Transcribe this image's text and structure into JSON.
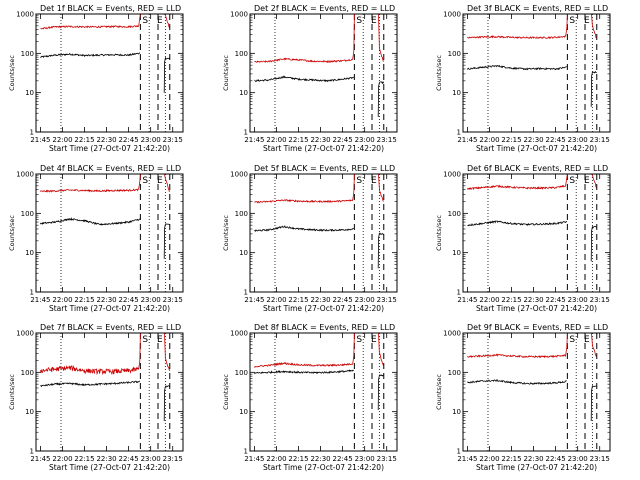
{
  "figure": {
    "common": {
      "ylabel": "Counts/sec",
      "xlabel": "Start Time (27-Oct-07 21:42:20)",
      "x_ticks": [
        "21:45",
        "22:00",
        "22:15",
        "22:30",
        "22:45",
        "23:00",
        "23:15"
      ],
      "y_ticks": [
        "1",
        "10",
        "100",
        "1000"
      ],
      "marker_labels": [
        "S",
        "E"
      ],
      "colors": {
        "events": "#000000",
        "lld": "#cc0000"
      }
    },
    "panels": [
      {
        "title": "Det 1f BLACK = Events, RED = LLD"
      },
      {
        "title": "Det 2f BLACK = Events, RED = LLD"
      },
      {
        "title": "Det 3f BLACK = Events, RED = LLD"
      },
      {
        "title": "Det 4f BLACK = Events, RED = LLD"
      },
      {
        "title": "Det 5f BLACK = Events, RED = LLD"
      },
      {
        "title": "Det 6f BLACK = Events, RED = LLD"
      },
      {
        "title": "Det 7f BLACK = Events, RED = LLD"
      },
      {
        "title": "Det 8f BLACK = Events, RED = LLD"
      },
      {
        "title": "Det 9f BLACK = Events, RED = LLD"
      }
    ]
  },
  "chart_data": [
    {
      "type": "line",
      "title": "Det 1f BLACK = Events, RED = LLD",
      "xlabel": "Start Time (27-Oct-07 21:42:20)",
      "ylabel": "Counts/sec",
      "yscale": "log",
      "ylim": [
        1,
        1000
      ],
      "xlim": [
        "21:42",
        "23:22"
      ],
      "dotted_lines_x": [
        "21:59",
        "22:59",
        "23:10"
      ],
      "dashed_lines_x": [
        "22:53",
        "23:05",
        "23:13"
      ],
      "series": [
        {
          "name": "BLACK = Events",
          "color": "#000000",
          "x": [
            "21:45",
            "21:55",
            "22:05",
            "22:15",
            "22:25",
            "22:35",
            "22:45",
            "22:52"
          ],
          "values": [
            80,
            90,
            95,
            88,
            90,
            92,
            90,
            100
          ]
        },
        {
          "name": "RED = LLD",
          "color": "#cc0000",
          "x": [
            "21:45",
            "21:55",
            "22:05",
            "22:15",
            "22:25",
            "22:35",
            "22:45",
            "22:52"
          ],
          "values": [
            420,
            470,
            480,
            470,
            470,
            480,
            475,
            500
          ]
        }
      ]
    },
    {
      "type": "line",
      "title": "Det 2f BLACK = Events, RED = LLD",
      "xlabel": "Start Time (27-Oct-07 21:42:20)",
      "ylabel": "Counts/sec",
      "yscale": "log",
      "ylim": [
        1,
        1000
      ],
      "xlim": [
        "21:42",
        "23:22"
      ],
      "dotted_lines_x": [
        "21:59",
        "22:59",
        "23:10"
      ],
      "dashed_lines_x": [
        "22:53",
        "23:05",
        "23:13"
      ],
      "series": [
        {
          "name": "BLACK = Events",
          "color": "#000000",
          "x": [
            "21:45",
            "21:55",
            "22:05",
            "22:15",
            "22:25",
            "22:35",
            "22:45",
            "22:52"
          ],
          "values": [
            20,
            21,
            25,
            22,
            21,
            20,
            22,
            24
          ]
        },
        {
          "name": "RED = LLD",
          "color": "#cc0000",
          "x": [
            "21:45",
            "21:55",
            "22:05",
            "22:15",
            "22:25",
            "22:35",
            "22:45",
            "22:52"
          ],
          "values": [
            60,
            62,
            72,
            68,
            63,
            62,
            65,
            70
          ]
        }
      ]
    },
    {
      "type": "line",
      "title": "Det 3f BLACK = Events, RED = LLD",
      "xlabel": "Start Time (27-Oct-07 21:42:20)",
      "ylabel": "Counts/sec",
      "yscale": "log",
      "ylim": [
        1,
        1000
      ],
      "xlim": [
        "21:42",
        "23:22"
      ],
      "dotted_lines_x": [
        "21:59",
        "22:59",
        "23:10"
      ],
      "dashed_lines_x": [
        "22:53",
        "23:05",
        "23:13"
      ],
      "series": [
        {
          "name": "BLACK = Events",
          "color": "#000000",
          "x": [
            "21:45",
            "21:55",
            "22:05",
            "22:15",
            "22:25",
            "22:35",
            "22:45",
            "22:52"
          ],
          "values": [
            40,
            44,
            48,
            42,
            40,
            41,
            40,
            44
          ]
        },
        {
          "name": "RED = LLD",
          "color": "#cc0000",
          "x": [
            "21:45",
            "21:55",
            "22:05",
            "22:15",
            "22:25",
            "22:35",
            "22:45",
            "22:52"
          ],
          "values": [
            250,
            260,
            265,
            255,
            250,
            250,
            255,
            270
          ]
        }
      ]
    },
    {
      "type": "line",
      "title": "Det 4f BLACK = Events, RED = LLD",
      "xlabel": "Start Time (27-Oct-07 21:42:20)",
      "ylabel": "Counts/sec",
      "yscale": "log",
      "ylim": [
        1,
        1000
      ],
      "xlim": [
        "21:42",
        "23:22"
      ],
      "dotted_lines_x": [
        "21:59",
        "22:59",
        "23:10"
      ],
      "dashed_lines_x": [
        "22:53",
        "23:05",
        "23:13"
      ],
      "series": [
        {
          "name": "BLACK = Events",
          "color": "#000000",
          "x": [
            "21:45",
            "21:55",
            "22:05",
            "22:15",
            "22:25",
            "22:35",
            "22:45",
            "22:52"
          ],
          "values": [
            55,
            60,
            72,
            65,
            52,
            55,
            60,
            70
          ]
        },
        {
          "name": "RED = LLD",
          "color": "#cc0000",
          "x": [
            "21:45",
            "21:55",
            "22:05",
            "22:15",
            "22:25",
            "22:35",
            "22:45",
            "22:52"
          ],
          "values": [
            360,
            370,
            390,
            380,
            370,
            380,
            385,
            400
          ]
        }
      ]
    },
    {
      "type": "line",
      "title": "Det 5f BLACK = Events, RED = LLD",
      "xlabel": "Start Time (27-Oct-07 21:42:20)",
      "ylabel": "Counts/sec",
      "yscale": "log",
      "ylim": [
        1,
        1000
      ],
      "xlim": [
        "21:42",
        "23:22"
      ],
      "dotted_lines_x": [
        "21:59",
        "22:59",
        "23:10"
      ],
      "dashed_lines_x": [
        "22:53",
        "23:05",
        "23:13"
      ],
      "series": [
        {
          "name": "BLACK = Events",
          "color": "#000000",
          "x": [
            "21:45",
            "21:55",
            "22:05",
            "22:15",
            "22:25",
            "22:35",
            "22:45",
            "22:52"
          ],
          "values": [
            36,
            38,
            46,
            40,
            38,
            37,
            38,
            40
          ]
        },
        {
          "name": "RED = LLD",
          "color": "#cc0000",
          "x": [
            "21:45",
            "21:55",
            "22:05",
            "22:15",
            "22:25",
            "22:35",
            "22:45",
            "22:52"
          ],
          "values": [
            190,
            200,
            215,
            205,
            200,
            200,
            205,
            215
          ]
        }
      ]
    },
    {
      "type": "line",
      "title": "Det 6f BLACK = Events, RED = LLD",
      "xlabel": "Start Time (27-Oct-07 21:42:20)",
      "ylabel": "Counts/sec",
      "yscale": "log",
      "ylim": [
        1,
        1000
      ],
      "xlim": [
        "21:42",
        "23:22"
      ],
      "dotted_lines_x": [
        "21:59",
        "22:59",
        "23:10"
      ],
      "dashed_lines_x": [
        "22:53",
        "23:05",
        "23:13"
      ],
      "series": [
        {
          "name": "BLACK = Events",
          "color": "#000000",
          "x": [
            "21:45",
            "21:55",
            "22:05",
            "22:15",
            "22:25",
            "22:35",
            "22:45",
            "22:52"
          ],
          "values": [
            50,
            55,
            62,
            55,
            52,
            53,
            55,
            60
          ]
        },
        {
          "name": "RED = LLD",
          "color": "#cc0000",
          "x": [
            "21:45",
            "21:55",
            "22:05",
            "22:15",
            "22:25",
            "22:35",
            "22:45",
            "22:52"
          ],
          "values": [
            420,
            450,
            490,
            460,
            440,
            440,
            450,
            500
          ]
        }
      ]
    },
    {
      "type": "line",
      "title": "Det 7f BLACK = Events, RED = LLD",
      "xlabel": "Start Time (27-Oct-07 21:42:20)",
      "ylabel": "Counts/sec",
      "yscale": "log",
      "ylim": [
        1,
        1000
      ],
      "xlim": [
        "21:42",
        "23:22"
      ],
      "dotted_lines_x": [
        "21:59",
        "22:59",
        "23:10"
      ],
      "dashed_lines_x": [
        "22:53",
        "23:05",
        "23:13"
      ],
      "series": [
        {
          "name": "BLACK = Events",
          "color": "#000000",
          "x": [
            "21:45",
            "21:55",
            "22:05",
            "22:15",
            "22:25",
            "22:35",
            "22:45",
            "22:52"
          ],
          "values": [
            45,
            50,
            52,
            48,
            50,
            52,
            55,
            58
          ]
        },
        {
          "name": "RED = LLD",
          "color": "#cc0000",
          "x": [
            "21:45",
            "21:55",
            "22:05",
            "22:15",
            "22:25",
            "22:35",
            "22:45",
            "22:52"
          ],
          "values": [
            110,
            120,
            130,
            110,
            105,
            105,
            110,
            120
          ]
        }
      ]
    },
    {
      "type": "line",
      "title": "Det 8f BLACK = Events, RED = LLD",
      "xlabel": "Start Time (27-Oct-07 21:42:20)",
      "ylabel": "Counts/sec",
      "yscale": "log",
      "ylim": [
        1,
        1000
      ],
      "xlim": [
        "21:42",
        "23:22"
      ],
      "dotted_lines_x": [
        "21:59",
        "22:59",
        "23:10"
      ],
      "dashed_lines_x": [
        "22:53",
        "23:05",
        "23:13"
      ],
      "series": [
        {
          "name": "BLACK = Events",
          "color": "#000000",
          "x": [
            "21:45",
            "21:55",
            "22:05",
            "22:15",
            "22:25",
            "22:35",
            "22:45",
            "22:52"
          ],
          "values": [
            95,
            100,
            105,
            100,
            98,
            100,
            105,
            110
          ]
        },
        {
          "name": "RED = LLD",
          "color": "#cc0000",
          "x": [
            "21:45",
            "21:55",
            "22:05",
            "22:15",
            "22:25",
            "22:35",
            "22:45",
            "22:52"
          ],
          "values": [
            140,
            150,
            170,
            155,
            150,
            150,
            155,
            165
          ]
        }
      ]
    },
    {
      "type": "line",
      "title": "Det 9f BLACK = Events, RED = LLD",
      "xlabel": "Start Time (27-Oct-07 21:42:20)",
      "ylabel": "Counts/sec",
      "yscale": "log",
      "ylim": [
        1,
        1000
      ],
      "xlim": [
        "21:42",
        "23:22"
      ],
      "dotted_lines_x": [
        "21:59",
        "22:59",
        "23:10"
      ],
      "dashed_lines_x": [
        "22:53",
        "23:05",
        "23:13"
      ],
      "series": [
        {
          "name": "BLACK = Events",
          "color": "#000000",
          "x": [
            "21:45",
            "21:55",
            "22:05",
            "22:15",
            "22:25",
            "22:35",
            "22:45",
            "22:52"
          ],
          "values": [
            55,
            60,
            62,
            55,
            52,
            52,
            54,
            58
          ]
        },
        {
          "name": "RED = LLD",
          "color": "#cc0000",
          "x": [
            "21:45",
            "21:55",
            "22:05",
            "22:15",
            "22:25",
            "22:35",
            "22:45",
            "22:52"
          ],
          "values": [
            250,
            260,
            275,
            260,
            250,
            250,
            255,
            270
          ]
        }
      ]
    }
  ]
}
